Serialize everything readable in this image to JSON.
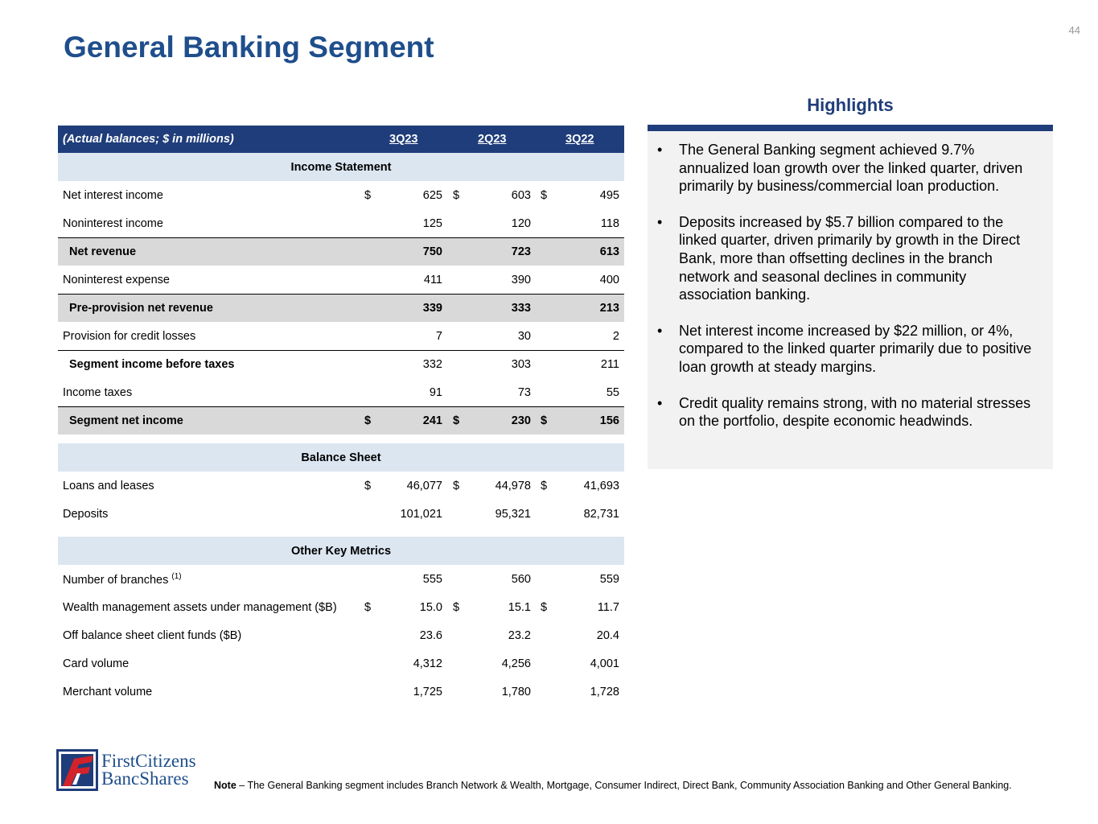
{
  "title": "General Banking Segment",
  "page_number": "44",
  "table": {
    "header": {
      "label": "(Actual balances; $ in millions)",
      "cols": [
        "3Q23",
        "2Q23",
        "3Q22"
      ]
    },
    "rows": [
      {
        "type": "section",
        "label": "Income Statement"
      },
      {
        "type": "row",
        "label": "Net interest income",
        "dollar": true,
        "values": [
          "625",
          "603",
          "495"
        ]
      },
      {
        "type": "row",
        "label": "Noninterest income",
        "values": [
          "125",
          "120",
          "118"
        ]
      },
      {
        "type": "total",
        "label": "Net revenue",
        "values": [
          "750",
          "723",
          "613"
        ]
      },
      {
        "type": "row",
        "label": "Noninterest expense",
        "values": [
          "411",
          "390",
          "400"
        ]
      },
      {
        "type": "total",
        "label": "Pre-provision net revenue",
        "values": [
          "339",
          "333",
          "213"
        ]
      },
      {
        "type": "row",
        "label": "Provision for credit losses",
        "values": [
          "7",
          "30",
          "2"
        ]
      },
      {
        "type": "subtotal",
        "label": "Segment income before taxes",
        "values": [
          "332",
          "303",
          "211"
        ]
      },
      {
        "type": "row",
        "label": "Income taxes",
        "values": [
          "91",
          "73",
          "55"
        ]
      },
      {
        "type": "total",
        "label": "Segment net income",
        "dollar": true,
        "values": [
          "241",
          "230",
          "156"
        ]
      },
      {
        "type": "spacer"
      },
      {
        "type": "section",
        "label": "Balance Sheet"
      },
      {
        "type": "row",
        "label": "Loans and leases",
        "dollar": true,
        "values": [
          "46,077",
          "44,978",
          "41,693"
        ]
      },
      {
        "type": "row",
        "label": "Deposits",
        "values": [
          "101,021",
          "95,321",
          "82,731"
        ]
      },
      {
        "type": "spacer"
      },
      {
        "type": "section",
        "label": "Other Key Metrics"
      },
      {
        "type": "row",
        "label": "Number of branches",
        "sup": "(1)",
        "values": [
          "555",
          "560",
          "559"
        ]
      },
      {
        "type": "row",
        "label": "Wealth management assets under management ($B)",
        "dollar": true,
        "values": [
          "15.0",
          "15.1",
          "11.7"
        ]
      },
      {
        "type": "row",
        "label": "Off balance sheet client funds ($B)",
        "values": [
          "23.6",
          "23.2",
          "20.4"
        ]
      },
      {
        "type": "row",
        "label": "Card volume",
        "values": [
          "4,312",
          "4,256",
          "4,001"
        ]
      },
      {
        "type": "row",
        "label": "Merchant volume",
        "values": [
          "1,725",
          "1,780",
          "1,728"
        ]
      }
    ]
  },
  "highlights": {
    "title": "Highlights",
    "bullets": [
      "The General Banking segment achieved 9.7% annualized loan growth over the linked quarter, driven primarily by business/commercial loan production.",
      "Deposits increased by $5.7 billion compared to the linked quarter, driven primarily by growth in the Direct Bank, more than offsetting declines in the branch network and seasonal declines in community association banking.",
      "Net interest income increased by $22 million, or 4%, compared to the linked quarter primarily due to positive loan growth at steady margins.",
      "Credit quality remains strong, with no material stresses on the portfolio, despite economic headwinds."
    ]
  },
  "logo": {
    "line1": "FirstCitizens",
    "line2": "BancShares"
  },
  "note": {
    "label": "Note",
    "text": " – The General Banking segment includes Branch Network & Wealth, Mortgage, Consumer Indirect, Direct Bank, Community Association Banking and Other General Banking."
  },
  "colors": {
    "title": "#1f4e8c",
    "header": "#1f3d7a",
    "section": "#dce6f1",
    "shade": "#d9d9d9",
    "logo_red": "#d2232a"
  }
}
